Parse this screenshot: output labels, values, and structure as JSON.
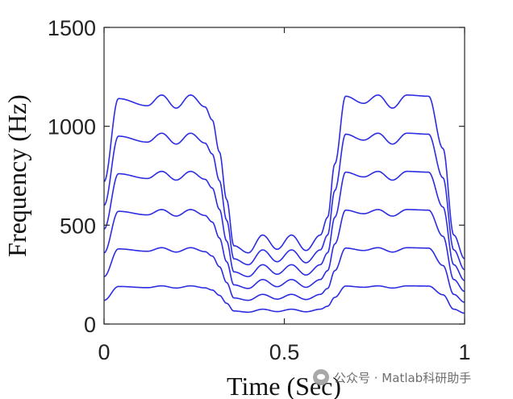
{
  "chart_data": {
    "type": "line",
    "xlabel": "Time (Sec)",
    "ylabel": "Frequency (Hz)",
    "xlim": [
      0,
      1
    ],
    "ylim": [
      0,
      1500
    ],
    "x_ticks": [
      0,
      0.5,
      1
    ],
    "x_tick_labels": [
      "0",
      "0.5",
      "1"
    ],
    "y_ticks": [
      0,
      500,
      1000,
      1500
    ],
    "y_tick_labels": [
      "0",
      "500",
      "1000",
      "1500"
    ],
    "grid": false,
    "legend": "none",
    "line_color": "#1515e0",
    "harmonic_multipliers": [
      1,
      2,
      3,
      4,
      5,
      6
    ],
    "fundamental_series": {
      "x": [
        0.0,
        0.04,
        0.12,
        0.16,
        0.2,
        0.24,
        0.28,
        0.3,
        0.32,
        0.34,
        0.36,
        0.4,
        0.44,
        0.48,
        0.52,
        0.56,
        0.6,
        0.62,
        0.64,
        0.67,
        0.72,
        0.76,
        0.8,
        0.84,
        0.9,
        0.94,
        0.97,
        1.0
      ],
      "y": [
        120,
        190,
        184,
        193,
        182,
        193,
        183,
        172,
        145,
        105,
        66,
        60,
        75,
        63,
        75,
        62,
        75,
        90,
        135,
        192,
        186,
        193,
        182,
        193,
        192,
        148,
        75,
        55
      ]
    }
  },
  "watermark": {
    "text": "公众号 · Matlab科研助手",
    "icon": "wechat-icon"
  }
}
